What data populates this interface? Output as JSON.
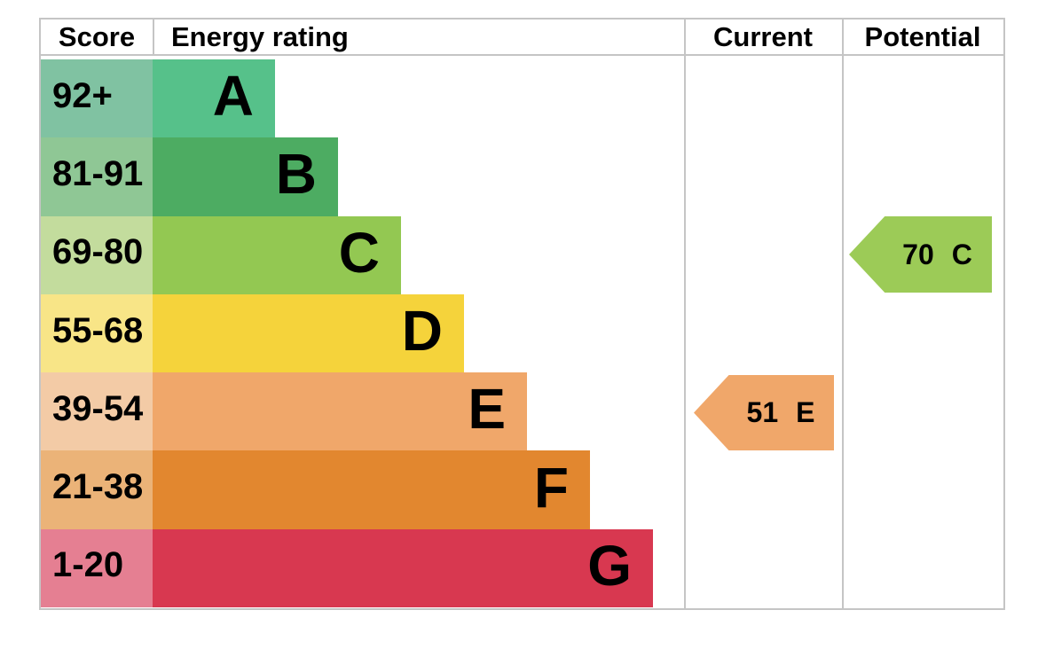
{
  "chart_data": {
    "type": "bar",
    "description": "EPC energy efficiency rating chart",
    "columns": [
      "Score",
      "Energy rating",
      "Current",
      "Potential"
    ],
    "bands": [
      {
        "range": "92+",
        "letter": "A",
        "min": 92,
        "max": 100,
        "score_color": "#80c2a2",
        "bar_color": "#56c18a"
      },
      {
        "range": "81-91",
        "letter": "B",
        "min": 81,
        "max": 91,
        "score_color": "#8fc795",
        "bar_color": "#4dac62"
      },
      {
        "range": "69-80",
        "letter": "C",
        "min": 69,
        "max": 80,
        "score_color": "#c3dc9d",
        "bar_color": "#93c852"
      },
      {
        "range": "55-68",
        "letter": "D",
        "min": 55,
        "max": 68,
        "score_color": "#f8e587",
        "bar_color": "#f5d33b"
      },
      {
        "range": "39-54",
        "letter": "E",
        "min": 39,
        "max": 54,
        "score_color": "#f3cba6",
        "bar_color": "#f0a76a"
      },
      {
        "range": "21-38",
        "letter": "F",
        "min": 21,
        "max": 38,
        "score_color": "#ebb378",
        "bar_color": "#e2872f"
      },
      {
        "range": "1-20",
        "letter": "G",
        "min": 1,
        "max": 20,
        "score_color": "#e57f92",
        "bar_color": "#d83850"
      }
    ],
    "current": {
      "value": "51",
      "rating": "E",
      "color": "#f0a76a"
    },
    "potential": {
      "value": "70",
      "rating": "C",
      "color": "#9ccb57"
    }
  }
}
